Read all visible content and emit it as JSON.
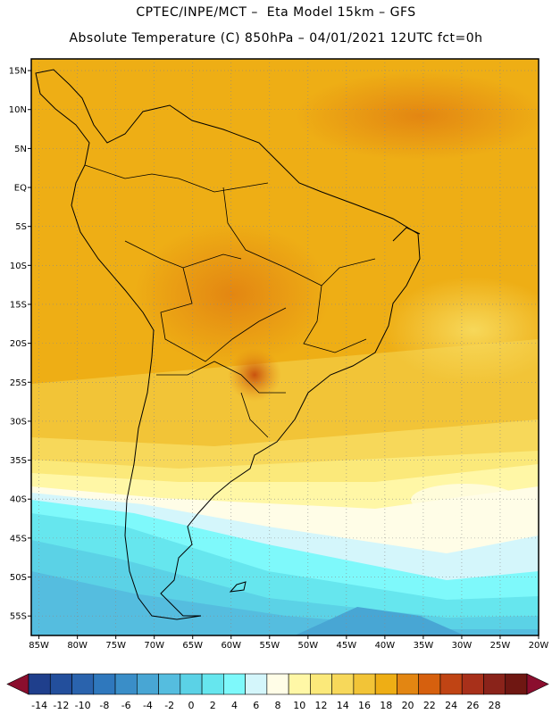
{
  "header": {
    "line1": "CPTEC/INPE/MCT –  Eta Model 15km – GFS",
    "line2": "Absolute Temperature (C) 850hPa – 04/01/2021 12UTC fct=0h"
  },
  "map": {
    "lat_labels": [
      "15N",
      "10N",
      "5N",
      "EQ",
      "5S",
      "10S",
      "15S",
      "20S",
      "25S",
      "30S",
      "35S",
      "40S",
      "45S",
      "50S",
      "55S"
    ],
    "lat_values": [
      15,
      10,
      5,
      0,
      -5,
      -10,
      -15,
      -20,
      -25,
      -30,
      -35,
      -40,
      -45,
      -50,
      -55
    ],
    "lon_labels": [
      "85W",
      "80W",
      "75W",
      "70W",
      "65W",
      "60W",
      "55W",
      "50W",
      "45W",
      "40W",
      "35W",
      "30W",
      "25W",
      "20W"
    ],
    "lon_values": [
      -85,
      -80,
      -75,
      -70,
      -65,
      -60,
      -55,
      -50,
      -45,
      -40,
      -35,
      -30,
      -25,
      -20
    ],
    "lat_range": [
      -57.5,
      16.5
    ],
    "lon_range": [
      -86,
      -20
    ]
  },
  "colorbar": {
    "ticks": [
      "-14",
      "-12",
      "-10",
      "-8",
      "-6",
      "-4",
      "-2",
      "0",
      "2",
      "4",
      "6",
      "8",
      "10",
      "12",
      "14",
      "16",
      "18",
      "20",
      "22",
      "24",
      "26",
      "28"
    ],
    "colors": [
      "#8b0e2e",
      "#1f3f8c",
      "#234f9c",
      "#2a63ad",
      "#2f78bd",
      "#3a8ec8",
      "#48a6d4",
      "#55bddf",
      "#5bd2e6",
      "#66e6ee",
      "#7ef9fb",
      "#d4f6fb",
      "#fffde7",
      "#fff7a6",
      "#fbe97a",
      "#f7d85a",
      "#f2c437",
      "#eeae15",
      "#e38612",
      "#d6600e",
      "#c04414",
      "#a8301a",
      "#8a231a",
      "#6f1712",
      "#8b0e2e"
    ]
  }
}
